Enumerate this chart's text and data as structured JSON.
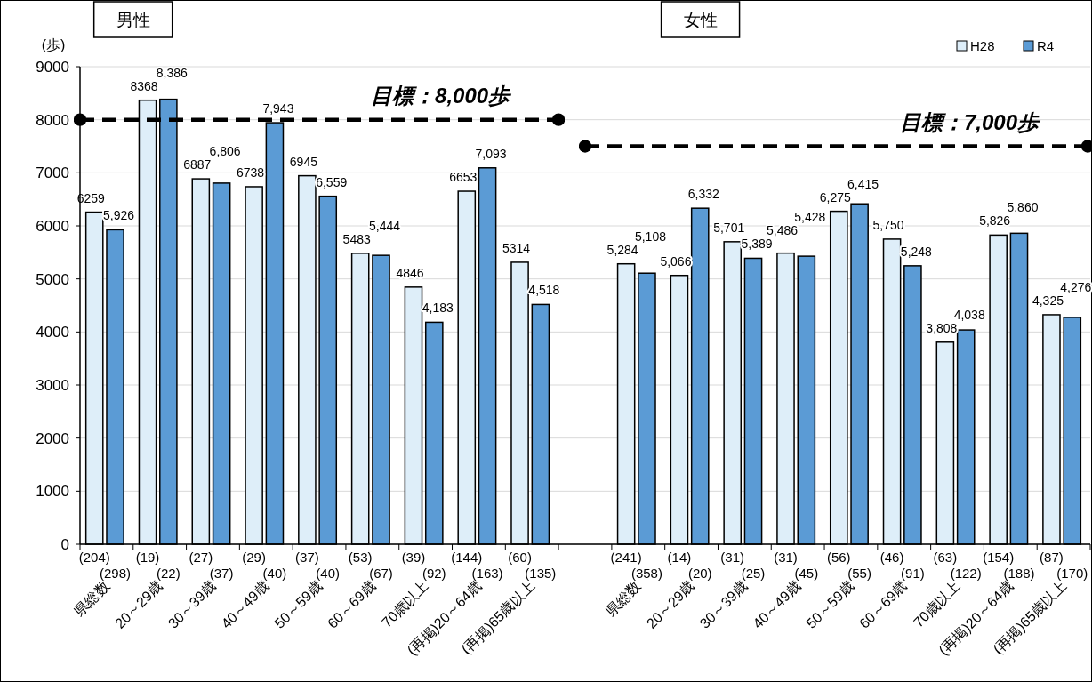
{
  "chart_data": {
    "type": "bar",
    "ylabel": "(歩)",
    "categories": [
      "(204)\n(298)\n県総数",
      "(19)\n(22)\n20～29歳",
      "(27)\n(37)\n30～39歳",
      "(29)\n(40)\n40～49歳",
      "(37)\n(40)\n50～59歳",
      "(53)\n(67)\n60～69歳",
      "(39)\n(92)\n70歳以上",
      "(144)\n(163)\n(再掲)20～64歳",
      "(60)\n(135)\n(再掲)65歳以上",
      null,
      "(241)\n(358)\n県総数",
      "(14)\n(20)\n20～29歳",
      "(31)\n(25)\n30～39歳",
      "(31)\n(45)\n40～49歳",
      "(56)\n(55)\n50～59歳",
      "(46)\n(91)\n60～69歳",
      "(63)\n(122)\n70歳以上",
      "(154)\n(188)\n(再掲)20～64歳",
      "(87)\n(170)\n(再掲)65歳以上"
    ],
    "series": [
      {
        "name": "H28",
        "color": "#deeef9",
        "values": [
          6259,
          8368,
          6887,
          6738,
          6945,
          5483,
          4846,
          6653,
          5314,
          null,
          5284,
          5066,
          5701,
          5486,
          6275,
          5750,
          3808,
          5826,
          4325
        ],
        "value_labels": [
          "6259",
          "8368",
          "6887",
          "6738",
          "6945",
          "5483",
          "4846",
          "6653",
          "5314",
          null,
          "5,284",
          "5,066",
          "5,701",
          "5,486",
          "6,275",
          "5,750",
          "3,808",
          "5,826",
          "4,325"
        ]
      },
      {
        "name": "R4",
        "color": "#5b9bd5",
        "values": [
          5926,
          8386,
          6806,
          7943,
          6559,
          5444,
          4183,
          7093,
          4518,
          null,
          5108,
          6332,
          5389,
          5428,
          6415,
          5248,
          4038,
          5860,
          4276
        ],
        "value_labels": [
          "5,926",
          "8,386",
          "6,806",
          "7,943",
          "6,559",
          "5,444",
          "4,183",
          "7,093",
          "4,518",
          null,
          "5,108",
          "6,332",
          "5,389",
          "5,428",
          "6,415",
          "5,248",
          "4,038",
          "5,860",
          "4,276"
        ]
      }
    ],
    "ylim": [
      0,
      9000
    ],
    "yticks": [
      0,
      1000,
      2000,
      3000,
      4000,
      5000,
      6000,
      7000,
      8000,
      9000
    ],
    "grid": "y",
    "legend": "top right",
    "ref_lines": [
      {
        "axis": "y",
        "value": 8000,
        "label": "目標：8,000歩",
        "color": "#000000",
        "line_style": "dashed"
      },
      {
        "axis": "y",
        "value": 7500,
        "label": "目標：7,000歩",
        "color": "#000000",
        "line_style": "dashed"
      }
    ],
    "annotations": [
      "男性",
      "女性"
    ]
  }
}
